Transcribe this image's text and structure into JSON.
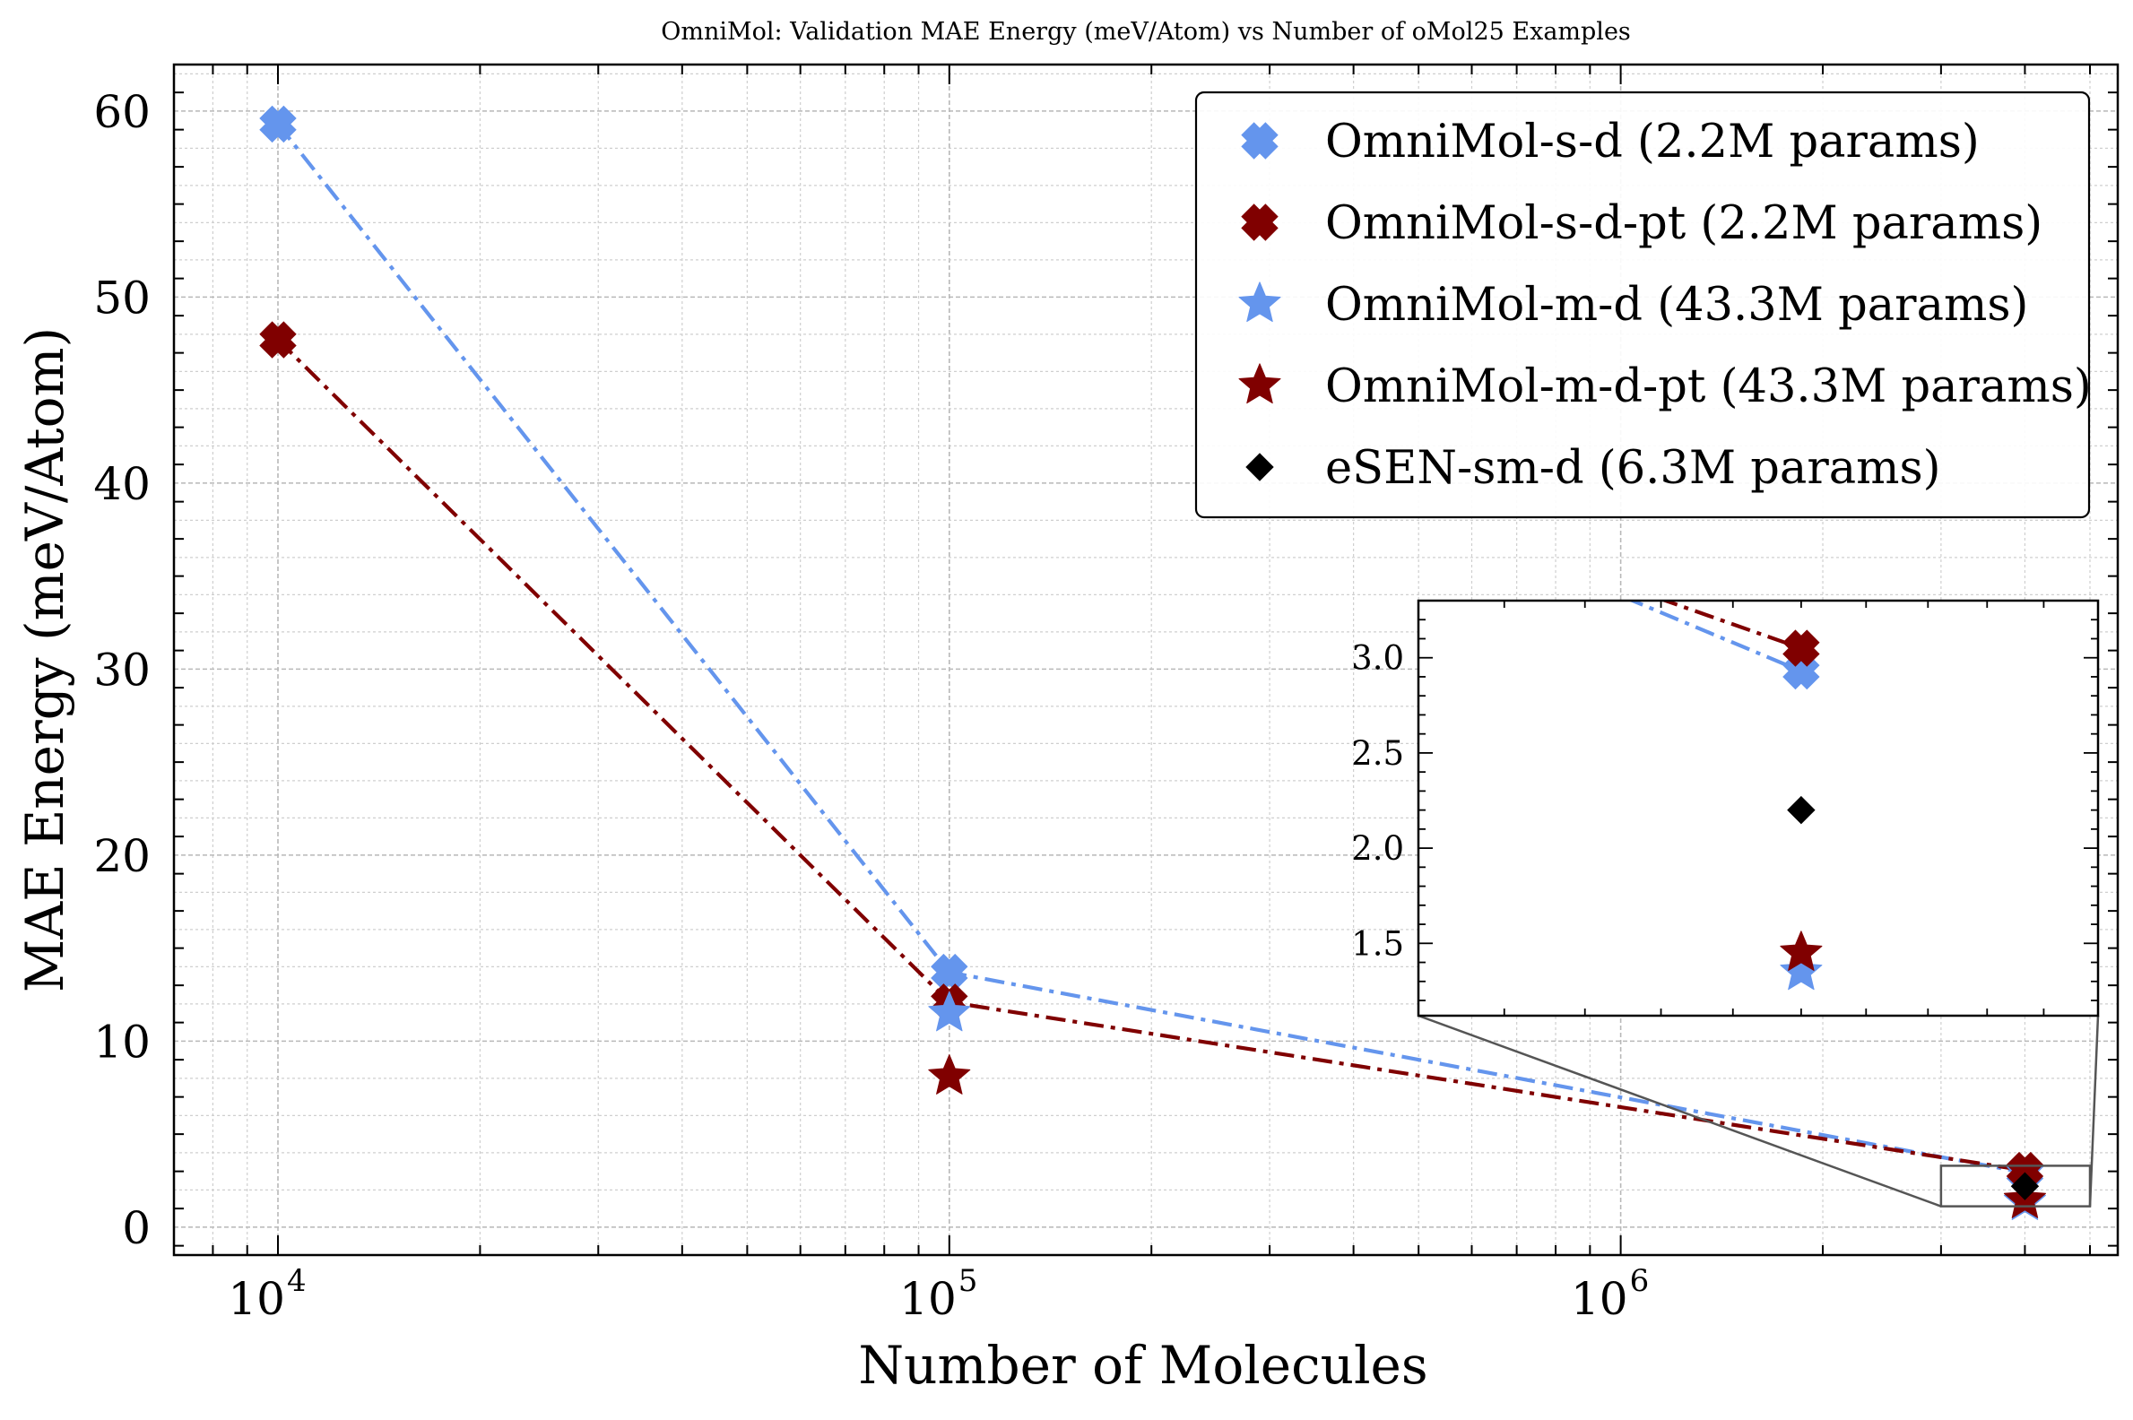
{
  "chart_data": {
    "type": "line",
    "title": "OmniMol: Validation MAE Energy (meV/Atom) vs Number of oMol25 Examples",
    "xlabel": "Number of Molecules",
    "ylabel": "MAE Energy (meV/Atom)",
    "xscale": "log",
    "xlim": [
      7000,
      5500000
    ],
    "ylim": [
      -1.5,
      62.5
    ],
    "xticks": [
      {
        "value": 10000,
        "base": "10",
        "exp": "4"
      },
      {
        "value": 100000,
        "base": "10",
        "exp": "5"
      },
      {
        "value": 1000000,
        "base": "10",
        "exp": "6"
      }
    ],
    "yticks": [
      0,
      10,
      20,
      30,
      40,
      50,
      60
    ],
    "grid": true,
    "legend_position": "top-right",
    "series": [
      {
        "name": "OmniMol-s-d (2.2M params)",
        "color": "#6495ed",
        "marker": "x-thick",
        "line": "dashdot",
        "x": [
          10000,
          100000,
          4000000
        ],
        "y": [
          59.3,
          13.7,
          2.93
        ]
      },
      {
        "name": "OmniMol-s-d-pt (2.2M params)",
        "color": "#800000",
        "marker": "x-thick",
        "line": "dashdot",
        "x": [
          10000,
          100000,
          4000000
        ],
        "y": [
          47.7,
          12.1,
          3.05
        ]
      },
      {
        "name": "OmniMol-m-d (43.3M params)",
        "color": "#6495ed",
        "marker": "star",
        "line": "none",
        "x": [
          100000,
          4000000
        ],
        "y": [
          11.5,
          1.35
        ]
      },
      {
        "name": "OmniMol-m-d-pt (43.3M params)",
        "color": "#800000",
        "marker": "star",
        "line": "none",
        "x": [
          100000,
          4000000
        ],
        "y": [
          8.1,
          1.45
        ]
      },
      {
        "name": "eSEN-sm-d (6.3M params)",
        "color": "#000000",
        "marker": "diamond",
        "line": "none",
        "x": [
          4000000
        ],
        "y": [
          2.2
        ]
      }
    ],
    "inset": {
      "xlim": [
        3000000,
        5000000
      ],
      "ylim": [
        1.12,
        3.3
      ],
      "yticks": [
        "1.5",
        "2.0",
        "2.5",
        "3.0"
      ]
    }
  }
}
